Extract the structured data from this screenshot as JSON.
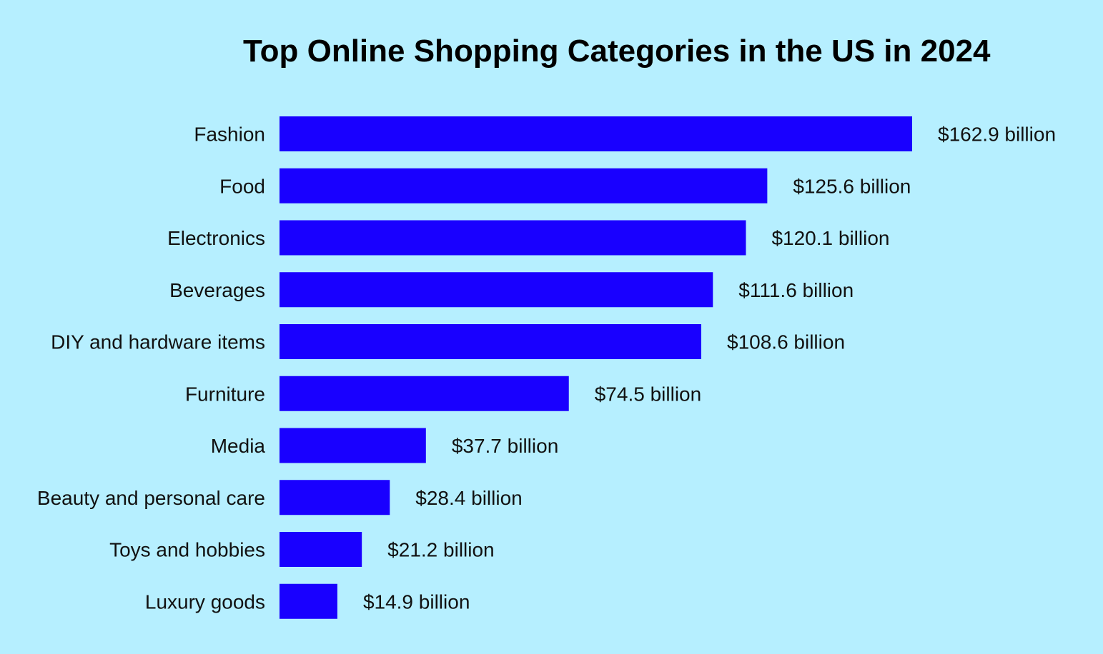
{
  "title": "Top Online Shopping Categories in the US in 2024",
  "colors": {
    "background": "#b6efff",
    "bar": "#1900ff",
    "text": "#111111"
  },
  "chart_data": {
    "type": "bar",
    "orientation": "horizontal",
    "title": "Top Online Shopping Categories in the US in 2024",
    "xlabel": "",
    "ylabel": "",
    "categories": [
      "Fashion",
      "Food",
      "Electronics",
      "Beverages",
      "DIY and hardware items",
      "Furniture",
      "Media",
      "Beauty and personal care",
      "Toys and hobbies",
      "Luxury goods"
    ],
    "values": [
      162.9,
      125.6,
      120.1,
      111.6,
      108.6,
      74.5,
      37.7,
      28.4,
      21.2,
      14.9
    ],
    "value_labels": [
      "$162.9 billion",
      "$125.6 billion",
      "$120.1 billion",
      "$111.6 billion",
      "$108.6 billion",
      "$74.5 billion",
      "$37.7 billion",
      "$28.4 billion",
      "$21.2 billion",
      "$14.9 billion"
    ],
    "unit": "billion USD",
    "grid": false,
    "legend": "none"
  }
}
